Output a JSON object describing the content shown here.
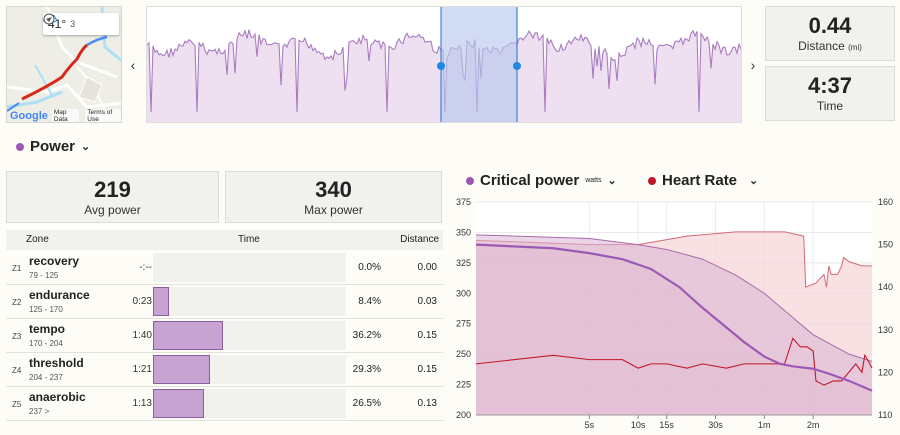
{
  "map": {
    "temperature": "41°",
    "wind_count": "3",
    "google_label": "Google",
    "map_data_label": "Map Data",
    "terms_label": "Terms of Use"
  },
  "nav": {
    "prev": "‹",
    "next": "›"
  },
  "stats": {
    "distance": {
      "value": "0.44",
      "label": "Distance",
      "unit": "(mi)"
    },
    "time": {
      "value": "4:37",
      "label": "Time"
    }
  },
  "power": {
    "title": "Power",
    "avg": {
      "value": "219",
      "label": "Avg power"
    },
    "max": {
      "value": "340",
      "label": "Max power"
    }
  },
  "zones": {
    "headers": {
      "zone": "Zone",
      "time": "Time",
      "distance": "Distance"
    },
    "rows": [
      {
        "id": "Z1",
        "name": "recovery",
        "range": "79 - 125",
        "time": "-:--",
        "pct": "0.0%",
        "dist": "0.00",
        "fraction": 0.0
      },
      {
        "id": "Z2",
        "name": "endurance",
        "range": "125 - 170",
        "time": "0:23",
        "pct": "8.4%",
        "dist": "0.03",
        "fraction": 0.084
      },
      {
        "id": "Z3",
        "name": "tempo",
        "range": "170 - 204",
        "time": "1:40",
        "pct": "36.2%",
        "dist": "0.15",
        "fraction": 0.362
      },
      {
        "id": "Z4",
        "name": "threshold",
        "range": "204 - 237",
        "time": "1:21",
        "pct": "29.3%",
        "dist": "0.15",
        "fraction": 0.293
      },
      {
        "id": "Z5",
        "name": "anaerobic",
        "range": "237  >",
        "time": "1:13",
        "pct": "26.5%",
        "dist": "0.13",
        "fraction": 0.265
      }
    ]
  },
  "colors": {
    "power": "#9b59b6",
    "heart_rate": "#c0182a",
    "zone_fill": "#c6a3d0",
    "selection": "#b8c7ec"
  },
  "chart_data": {
    "type": "line",
    "series_labels": {
      "power": "Critical power",
      "power_unit": "watts",
      "hr": "Heart Rate"
    },
    "x_ticks": [
      "5s",
      "10s",
      "15s",
      "30s",
      "1m",
      "2m"
    ],
    "x_tick_seconds": [
      5,
      10,
      15,
      30,
      60,
      120
    ],
    "x_range_seconds": [
      1,
      277
    ],
    "y_left": {
      "ticks": [
        "375",
        "350",
        "325",
        "300",
        "275",
        "250",
        "225",
        "200"
      ],
      "range": [
        200,
        375
      ]
    },
    "y_right": {
      "ticks": [
        "160",
        "150",
        "140",
        "130",
        "120",
        "110"
      ],
      "range": [
        110,
        160
      ]
    },
    "critical_power": [
      [
        1,
        340
      ],
      [
        3,
        337
      ],
      [
        5,
        333
      ],
      [
        8,
        328
      ],
      [
        12,
        320
      ],
      [
        18,
        305
      ],
      [
        25,
        288
      ],
      [
        35,
        272
      ],
      [
        45,
        260
      ],
      [
        60,
        248
      ],
      [
        75,
        242
      ],
      [
        90,
        240
      ],
      [
        120,
        238
      ],
      [
        150,
        234
      ],
      [
        200,
        228
      ],
      [
        277,
        220
      ]
    ],
    "critical_power_shadow": [
      [
        1,
        348
      ],
      [
        5,
        345
      ],
      [
        10,
        340
      ],
      [
        15,
        336
      ],
      [
        25,
        328
      ],
      [
        40,
        315
      ],
      [
        60,
        300
      ],
      [
        90,
        280
      ],
      [
        120,
        266
      ],
      [
        200,
        250
      ],
      [
        277,
        244
      ]
    ],
    "heart_rate": [
      [
        1,
        122
      ],
      [
        3,
        124
      ],
      [
        5,
        123
      ],
      [
        8,
        123
      ],
      [
        10,
        121
      ],
      [
        12,
        122
      ],
      [
        15,
        122
      ],
      [
        20,
        121
      ],
      [
        25,
        122
      ],
      [
        35,
        121
      ],
      [
        45,
        122
      ],
      [
        60,
        122
      ],
      [
        80,
        122
      ],
      [
        90,
        128
      ],
      [
        100,
        126
      ],
      [
        110,
        126
      ],
      [
        120,
        125
      ],
      [
        125,
        118
      ],
      [
        140,
        117
      ],
      [
        160,
        118
      ],
      [
        180,
        118
      ],
      [
        220,
        122
      ],
      [
        240,
        120
      ],
      [
        250,
        124
      ],
      [
        260,
        123
      ],
      [
        277,
        121
      ]
    ],
    "heart_rate_shadow": [
      [
        1,
        151
      ],
      [
        5,
        150
      ],
      [
        10,
        150
      ],
      [
        20,
        152
      ],
      [
        40,
        153
      ],
      [
        60,
        153
      ],
      [
        80,
        153
      ],
      [
        105,
        152
      ],
      [
        108,
        140
      ],
      [
        125,
        141
      ],
      [
        140,
        143
      ],
      [
        145,
        140
      ],
      [
        150,
        145
      ],
      [
        155,
        143
      ],
      [
        170,
        143
      ],
      [
        180,
        145
      ],
      [
        185,
        147
      ],
      [
        200,
        146
      ],
      [
        240,
        145
      ],
      [
        277,
        145
      ]
    ]
  }
}
